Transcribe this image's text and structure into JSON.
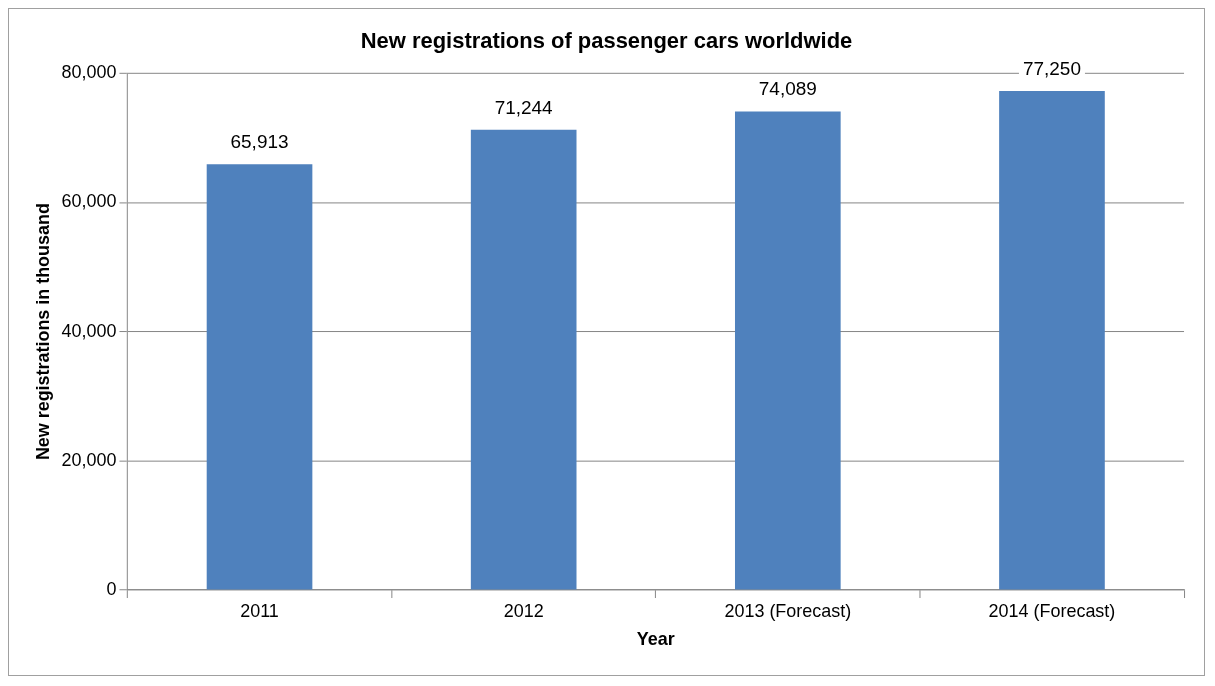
{
  "chart_data": {
    "type": "bar",
    "title": "New registrations of passenger cars worldwide",
    "xlabel": "Year",
    "ylabel": "New registrations in thousand",
    "categories": [
      "2011",
      "2012",
      "2013 (Forecast)",
      "2014 (Forecast)"
    ],
    "values": [
      65913,
      71244,
      74089,
      77250
    ],
    "color": "#4f81bd",
    "value_labels": [
      "65,913",
      "71,244",
      "74,089",
      "77,250"
    ],
    "ylim": [
      0,
      80000
    ],
    "yticks": [
      0,
      {
        "value": 20000,
        "label": "20,000"
      },
      {
        "value": 40000,
        "label": "40,000"
      },
      {
        "value": 60000,
        "label": "60,000"
      },
      {
        "value": 80000,
        "label": "80,000"
      }
    ],
    "grid": "y",
    "legend": false
  }
}
